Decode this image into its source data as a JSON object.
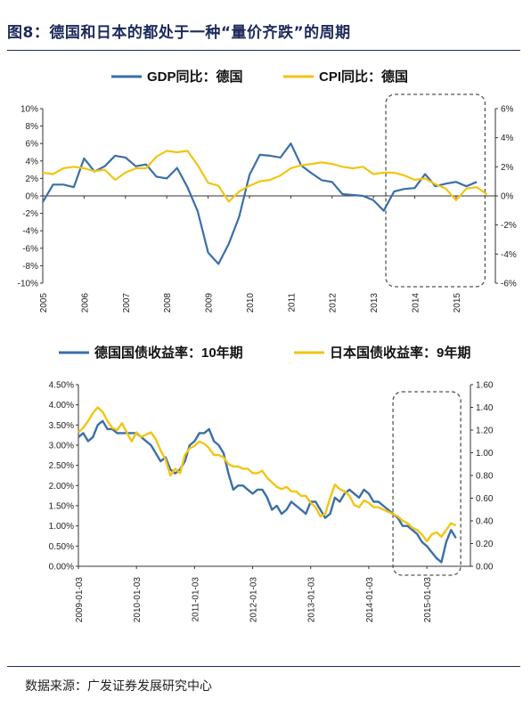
{
  "figure": {
    "title": "图8：德国和日本的都处于一种“量价齐跌”的周期",
    "source": "数据来源：广发证券发展研究中心"
  },
  "colors": {
    "blue": "#3a6fa8",
    "gold": "#f2c512",
    "box": "#555555"
  },
  "chart_data": [
    {
      "type": "line",
      "dual_axis": true,
      "title": "",
      "xlabel": "",
      "ylabel": "",
      "x_ticks": [
        "2005",
        "2006",
        "2007",
        "2008",
        "2009",
        "2010",
        "2011",
        "2012",
        "2013",
        "2014",
        "2015"
      ],
      "y_left_ticks": [
        "10%",
        "8%",
        "6%",
        "4%",
        "2%",
        "0%",
        "-2%",
        "-4%",
        "-6%",
        "-8%",
        "-10%"
      ],
      "y_right_ticks": [
        "6%",
        "4%",
        "2%",
        "0%",
        "-2%",
        "-4%",
        "-6%"
      ],
      "y_left_range": [
        -10,
        10
      ],
      "y_right_range": [
        -6,
        6
      ],
      "grid": false,
      "legend_position": "top",
      "highlight_box_x_range": [
        2013.3,
        2015.7
      ],
      "series": [
        {
          "name": "GDP同比：德国",
          "axis": "left",
          "color": "#3a6fa8",
          "x": [
            2005.0,
            2005.25,
            2005.5,
            2005.75,
            2006.0,
            2006.25,
            2006.5,
            2006.75,
            2007.0,
            2007.25,
            2007.5,
            2007.75,
            2008.0,
            2008.25,
            2008.5,
            2008.75,
            2009.0,
            2009.25,
            2009.5,
            2009.75,
            2010.0,
            2010.25,
            2010.5,
            2010.75,
            2011.0,
            2011.25,
            2011.5,
            2011.75,
            2012.0,
            2012.25,
            2012.5,
            2012.75,
            2013.0,
            2013.25,
            2013.5,
            2013.75,
            2014.0,
            2014.25,
            2014.5,
            2014.75,
            2015.0,
            2015.25,
            2015.5
          ],
          "values": [
            -0.7,
            1.3,
            1.3,
            1.0,
            4.3,
            2.8,
            3.4,
            4.6,
            4.4,
            3.4,
            3.6,
            2.2,
            2.0,
            3.2,
            1.0,
            -1.8,
            -6.5,
            -7.8,
            -5.5,
            -2.4,
            2.4,
            4.7,
            4.6,
            4.4,
            6.0,
            3.5,
            2.6,
            1.8,
            1.6,
            0.2,
            0.1,
            0.0,
            -0.5,
            -1.7,
            0.5,
            0.8,
            0.9,
            2.5,
            1.1,
            1.4,
            1.6,
            1.1,
            1.6
          ]
        },
        {
          "name": "CPI同比：德国",
          "axis": "right",
          "color": "#f2c512",
          "x": [
            2005.0,
            2005.25,
            2005.5,
            2005.75,
            2006.0,
            2006.25,
            2006.5,
            2006.75,
            2007.0,
            2007.25,
            2007.5,
            2007.75,
            2008.0,
            2008.25,
            2008.5,
            2008.75,
            2009.0,
            2009.25,
            2009.5,
            2009.75,
            2010.0,
            2010.25,
            2010.5,
            2010.75,
            2011.0,
            2011.25,
            2011.5,
            2011.75,
            2012.0,
            2012.25,
            2012.5,
            2012.75,
            2013.0,
            2013.25,
            2013.5,
            2013.75,
            2014.0,
            2014.25,
            2014.5,
            2014.75,
            2015.0,
            2015.25,
            2015.5,
            2015.75
          ],
          "values": [
            1.6,
            1.5,
            1.9,
            2.0,
            1.9,
            1.7,
            1.8,
            1.1,
            1.6,
            1.9,
            1.9,
            2.7,
            3.1,
            3.0,
            3.1,
            2.1,
            0.9,
            0.7,
            -0.4,
            0.3,
            0.7,
            1.0,
            1.1,
            1.4,
            1.9,
            2.1,
            2.2,
            2.3,
            2.2,
            2.0,
            1.9,
            2.0,
            1.5,
            1.6,
            1.6,
            1.4,
            1.1,
            1.2,
            0.8,
            0.5,
            -0.3,
            0.5,
            0.6,
            0.1
          ]
        }
      ]
    },
    {
      "type": "line",
      "dual_axis": true,
      "title": "",
      "xlabel": "",
      "ylabel": "",
      "x_ticks": [
        "2009-01-03",
        "2010-01-03",
        "2011-01-03",
        "2012-01-03",
        "2013-01-03",
        "2014-01-03",
        "2015-01-03"
      ],
      "y_left_ticks": [
        "4.50%",
        "4.00%",
        "3.50%",
        "3.00%",
        "2.50%",
        "2.00%",
        "1.50%",
        "1.00%",
        "0.50%",
        "0.00%"
      ],
      "y_right_ticks": [
        "1.60",
        "1.40",
        "1.20",
        "1.00",
        "0.80",
        "0.60",
        "0.40",
        "0.20",
        "0.00"
      ],
      "y_left_range": [
        0,
        4.5
      ],
      "y_right_range": [
        0,
        1.6
      ],
      "grid": false,
      "legend_position": "top",
      "highlight_box_x_range": [
        "2014-06",
        "2015-08"
      ],
      "series": [
        {
          "name": "德国国债收益率：10年期",
          "axis": "left",
          "color": "#3a6fa8",
          "x": [
            "2009-01",
            "2009-02",
            "2009-03",
            "2009-04",
            "2009-05",
            "2009-06",
            "2009-07",
            "2009-08",
            "2009-09",
            "2009-10",
            "2009-11",
            "2009-12",
            "2010-01",
            "2010-02",
            "2010-03",
            "2010-04",
            "2010-05",
            "2010-06",
            "2010-07",
            "2010-08",
            "2010-09",
            "2010-10",
            "2010-11",
            "2010-12",
            "2011-01",
            "2011-02",
            "2011-03",
            "2011-04",
            "2011-05",
            "2011-06",
            "2011-07",
            "2011-08",
            "2011-09",
            "2011-10",
            "2011-11",
            "2011-12",
            "2012-01",
            "2012-02",
            "2012-03",
            "2012-04",
            "2012-05",
            "2012-06",
            "2012-07",
            "2012-08",
            "2012-09",
            "2012-10",
            "2012-11",
            "2012-12",
            "2013-01",
            "2013-02",
            "2013-03",
            "2013-04",
            "2013-05",
            "2013-06",
            "2013-07",
            "2013-08",
            "2013-09",
            "2013-10",
            "2013-11",
            "2013-12",
            "2014-01",
            "2014-02",
            "2014-03",
            "2014-04",
            "2014-05",
            "2014-06",
            "2014-07",
            "2014-08",
            "2014-09",
            "2014-10",
            "2014-11",
            "2014-12",
            "2015-01",
            "2015-02",
            "2015-03",
            "2015-04",
            "2015-05",
            "2015-06",
            "2015-07"
          ],
          "values": [
            3.2,
            3.3,
            3.1,
            3.2,
            3.5,
            3.6,
            3.4,
            3.4,
            3.3,
            3.3,
            3.3,
            3.3,
            3.3,
            3.2,
            3.1,
            3.0,
            2.8,
            2.6,
            2.7,
            2.4,
            2.3,
            2.4,
            2.6,
            3.0,
            3.1,
            3.3,
            3.3,
            3.4,
            3.1,
            3.0,
            2.8,
            2.3,
            1.9,
            2.0,
            2.0,
            1.9,
            1.8,
            1.9,
            1.9,
            1.7,
            1.4,
            1.5,
            1.3,
            1.4,
            1.6,
            1.5,
            1.4,
            1.3,
            1.6,
            1.6,
            1.4,
            1.2,
            1.3,
            1.7,
            1.6,
            1.8,
            1.9,
            1.8,
            1.7,
            1.9,
            1.8,
            1.6,
            1.6,
            1.5,
            1.4,
            1.3,
            1.2,
            1.0,
            1.0,
            0.9,
            0.8,
            0.6,
            0.5,
            0.35,
            0.2,
            0.1,
            0.6,
            0.9,
            0.7
          ]
        },
        {
          "name": "日本国债收益率：9年期",
          "axis": "right",
          "color": "#f2c512",
          "x": [
            "2009-01",
            "2009-02",
            "2009-03",
            "2009-04",
            "2009-05",
            "2009-06",
            "2009-07",
            "2009-08",
            "2009-09",
            "2009-10",
            "2009-11",
            "2009-12",
            "2010-01",
            "2010-02",
            "2010-03",
            "2010-04",
            "2010-05",
            "2010-06",
            "2010-07",
            "2010-08",
            "2010-09",
            "2010-10",
            "2010-11",
            "2010-12",
            "2011-01",
            "2011-02",
            "2011-03",
            "2011-04",
            "2011-05",
            "2011-06",
            "2011-07",
            "2011-08",
            "2011-09",
            "2011-10",
            "2011-11",
            "2011-12",
            "2012-01",
            "2012-02",
            "2012-03",
            "2012-04",
            "2012-05",
            "2012-06",
            "2012-07",
            "2012-08",
            "2012-09",
            "2012-10",
            "2012-11",
            "2012-12",
            "2013-01",
            "2013-02",
            "2013-03",
            "2013-04",
            "2013-05",
            "2013-06",
            "2013-07",
            "2013-08",
            "2013-09",
            "2013-10",
            "2013-11",
            "2013-12",
            "2014-01",
            "2014-02",
            "2014-03",
            "2014-04",
            "2014-05",
            "2014-06",
            "2014-07",
            "2014-08",
            "2014-09",
            "2014-10",
            "2014-11",
            "2014-12",
            "2015-01",
            "2015-02",
            "2015-03",
            "2015-04",
            "2015-05",
            "2015-06",
            "2015-07"
          ],
          "values": [
            1.18,
            1.22,
            1.28,
            1.35,
            1.4,
            1.36,
            1.28,
            1.22,
            1.2,
            1.26,
            1.18,
            1.1,
            1.18,
            1.14,
            1.16,
            1.18,
            1.12,
            1.02,
            0.94,
            0.8,
            0.86,
            0.82,
            0.98,
            1.04,
            1.06,
            1.1,
            1.08,
            1.04,
            0.98,
            0.98,
            0.96,
            0.9,
            0.88,
            0.88,
            0.86,
            0.86,
            0.82,
            0.82,
            0.84,
            0.78,
            0.74,
            0.7,
            0.68,
            0.7,
            0.66,
            0.66,
            0.62,
            0.62,
            0.56,
            0.52,
            0.44,
            0.46,
            0.6,
            0.72,
            0.68,
            0.66,
            0.62,
            0.54,
            0.52,
            0.58,
            0.56,
            0.52,
            0.52,
            0.5,
            0.48,
            0.46,
            0.44,
            0.4,
            0.38,
            0.34,
            0.32,
            0.28,
            0.22,
            0.28,
            0.3,
            0.26,
            0.32,
            0.38,
            0.36
          ]
        }
      ]
    }
  ]
}
